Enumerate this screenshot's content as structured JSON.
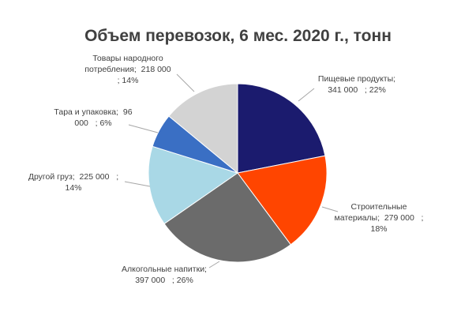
{
  "chart_data": {
    "type": "pie",
    "title": "Объем перевозок, 6 мес. 2020 г., тонн",
    "slices": [
      {
        "name": "Пищевые продукты",
        "value": 341000,
        "percent": 22,
        "color": "#1b1b6e",
        "label_lines": [
          "Пищевые продукты;",
          "341 000   ; 22%"
        ]
      },
      {
        "name": "Строительные материалы",
        "value": 279000,
        "percent": 18,
        "color": "#ff4500",
        "label_lines": [
          "Строительные",
          "материалы;  279 000   ;",
          "18%"
        ]
      },
      {
        "name": "Алкогольные напитки",
        "value": 397000,
        "percent": 26,
        "color": "#6b6b6b",
        "label_lines": [
          "Алкогольные напитки;",
          "397 000   ; 26%"
        ]
      },
      {
        "name": "Другой груз",
        "value": 225000,
        "percent": 14,
        "color": "#a9d8e6",
        "label_lines": [
          "Другой груз;  225 000   ;",
          "14%"
        ]
      },
      {
        "name": "Тара и упаковка",
        "value": 96000,
        "percent": 6,
        "color": "#3a6fc4",
        "label_lines": [
          "Тара и упаковка;  96",
          "000   ; 6%"
        ]
      },
      {
        "name": "Товары народного потребления",
        "value": 218000,
        "percent": 14,
        "color": "#d3d3d3",
        "label_lines": [
          "Товары народного",
          "потребления;  218 000",
          "; 14%"
        ]
      }
    ],
    "legend": "none"
  }
}
